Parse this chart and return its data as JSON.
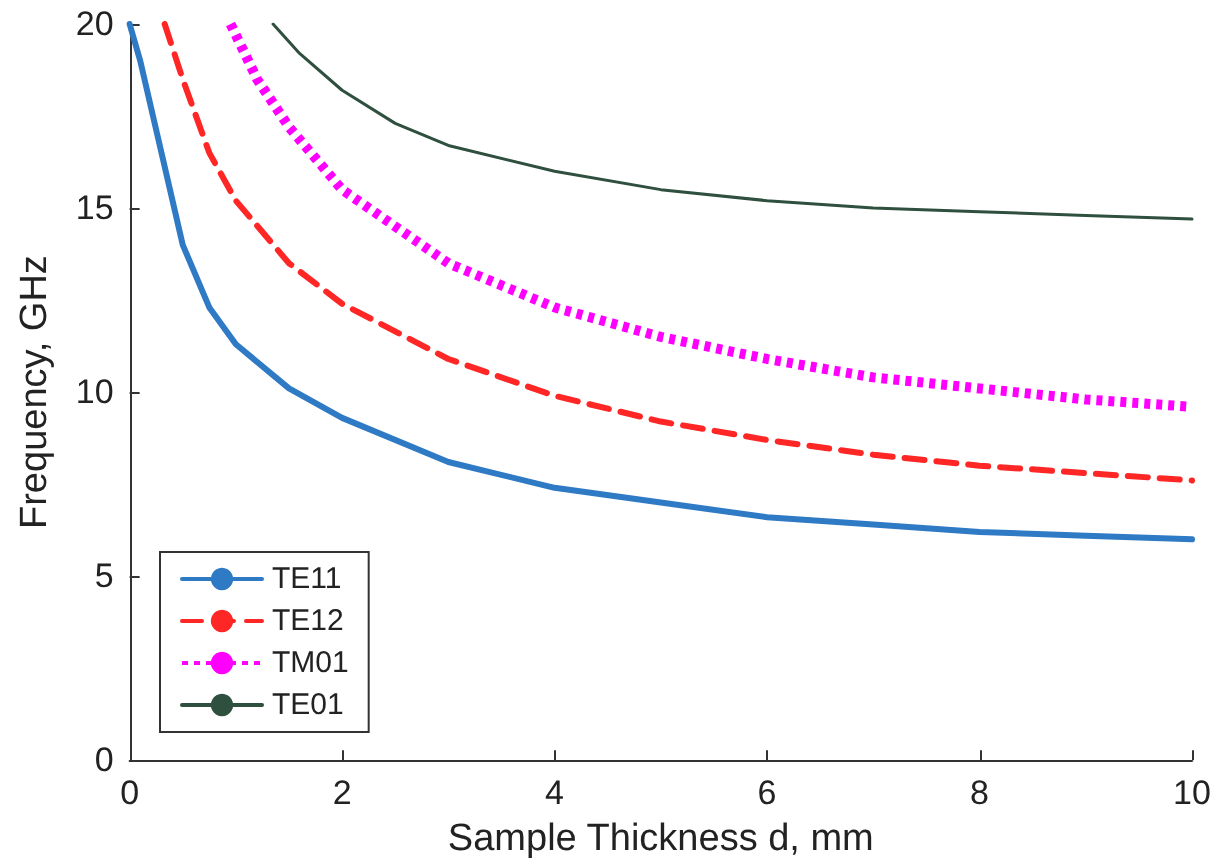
{
  "chart_data": {
    "type": "line",
    "xlabel": "Sample Thickness d, mm",
    "ylabel": "Frequency, GHz",
    "xlim": [
      0,
      10
    ],
    "xticks": [
      0,
      2,
      4,
      6,
      8,
      10
    ],
    "ylim": [
      0,
      20
    ],
    "yticks": [
      0,
      5,
      10,
      15,
      20
    ],
    "grid": false,
    "legend": "bottom left",
    "marker": "none",
    "series": [
      {
        "name": "TE11",
        "color": "#2f7ac4",
        "line_style": "solid",
        "x": [
          0,
          0.1,
          0.3,
          0.5,
          0.75,
          1,
          1.5,
          2,
          3,
          4,
          5,
          6,
          7,
          8,
          9,
          10
        ],
        "values": [
          20,
          19,
          16.5,
          14,
          12.3,
          11.3,
          10.1,
          9.3,
          8.1,
          7.4,
          7.0,
          6.6,
          6.4,
          6.2,
          6.1,
          6.0
        ]
      },
      {
        "name": "TE12",
        "color": "#ff2626",
        "line_style": "dashed",
        "x": [
          0.33,
          0.5,
          0.75,
          1,
          1.5,
          2,
          3,
          4,
          5,
          6,
          7,
          8,
          9,
          10
        ],
        "values": [
          20,
          18.5,
          16.5,
          15.2,
          13.5,
          12.4,
          10.9,
          9.9,
          9.2,
          8.7,
          8.3,
          8.0,
          7.8,
          7.6
        ]
      },
      {
        "name": "TM01",
        "color": "#ff00ff",
        "line_style": "dotted",
        "x": [
          0.95,
          1.2,
          1.5,
          2,
          3,
          4,
          5,
          6,
          7,
          8,
          9,
          10
        ],
        "values": [
          20,
          18.5,
          17.2,
          15.5,
          13.5,
          12.3,
          11.5,
          10.9,
          10.4,
          10.1,
          9.8,
          9.6
        ]
      },
      {
        "name": "TE01",
        "color": "#2f4f3f",
        "line_style": "solid",
        "x": [
          1.35,
          1.6,
          2,
          2.5,
          3,
          4,
          5,
          6,
          7,
          8,
          9,
          10
        ],
        "values": [
          20,
          19.2,
          18.2,
          17.3,
          16.7,
          16.0,
          15.5,
          15.2,
          15.0,
          14.9,
          14.8,
          14.7
        ]
      }
    ]
  }
}
